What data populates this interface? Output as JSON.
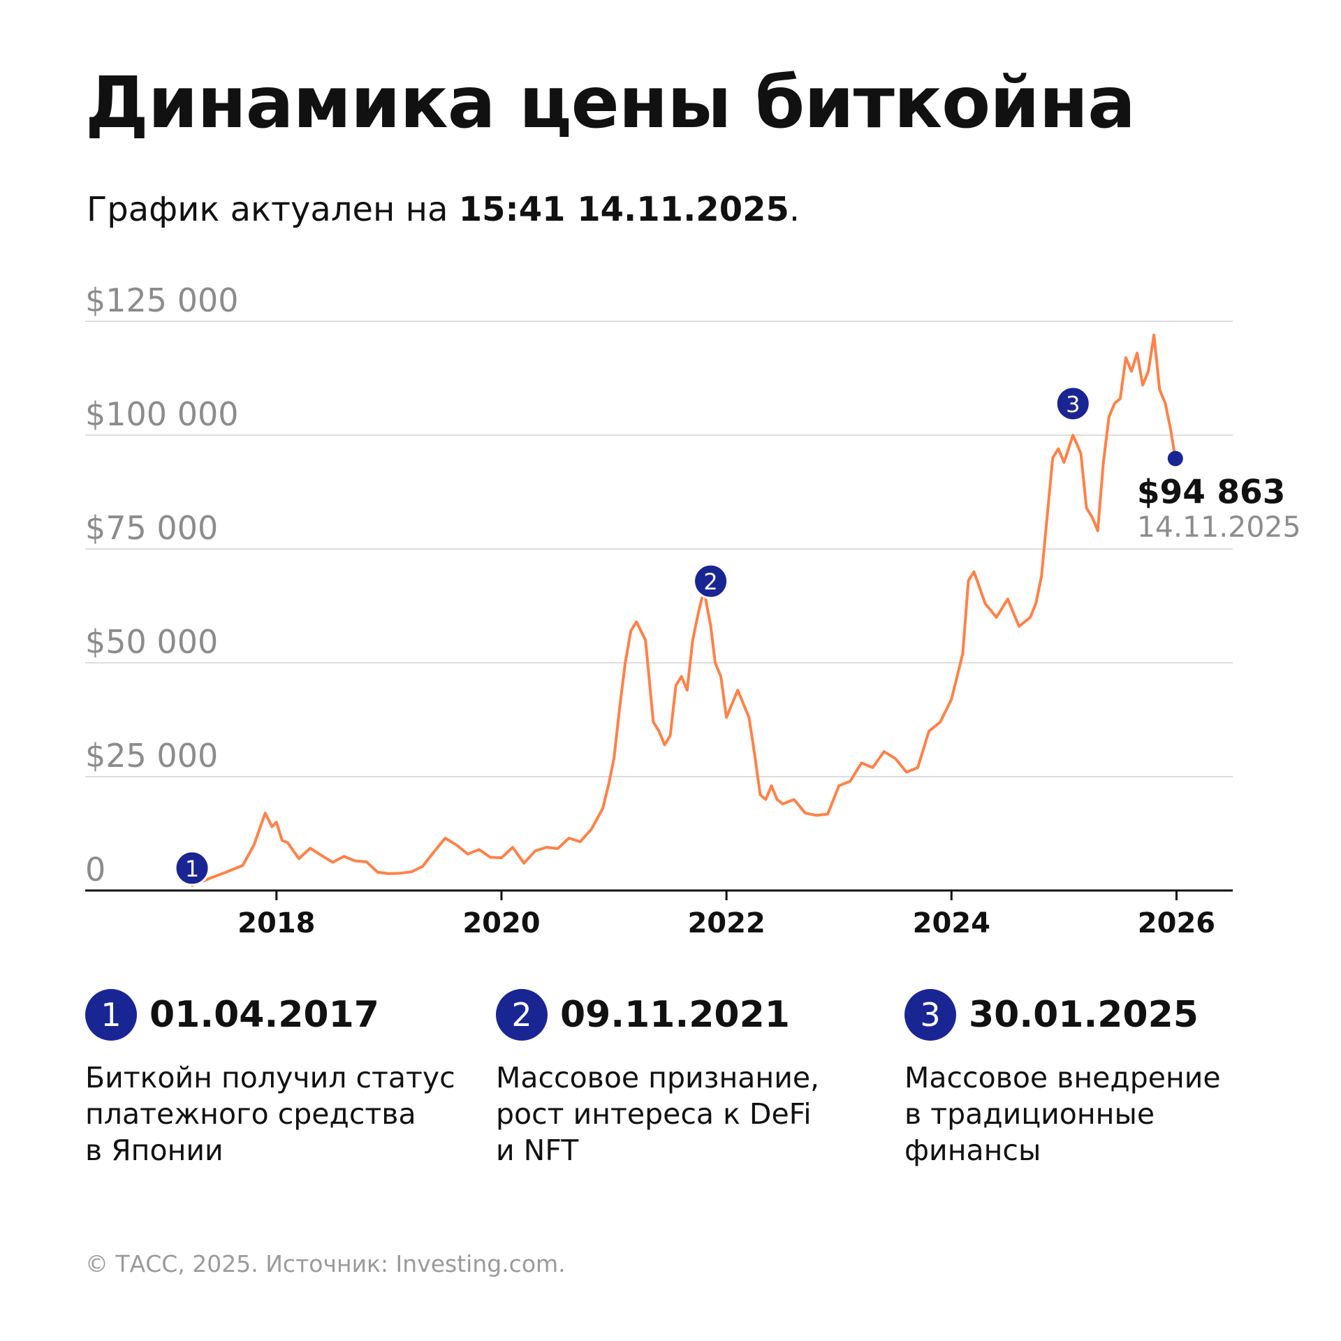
{
  "header": {
    "title": "Динамика цены биткойна",
    "subtitle_prefix": "График актуален на ",
    "subtitle_time": "15:41 14.11.2025",
    "subtitle_suffix": "."
  },
  "chart_data": {
    "type": "line",
    "title": "Динамика цены биткойна",
    "ylim": [
      0,
      125000
    ],
    "xlim": [
      2016.3,
      2026.5
    ],
    "yticks": [
      {
        "value": 125000,
        "label": "$125 000"
      },
      {
        "value": 100000,
        "label": "$100 000"
      },
      {
        "value": 75000,
        "label": "$75 000"
      },
      {
        "value": 50000,
        "label": "$50 000"
      },
      {
        "value": 25000,
        "label": "$25 000"
      },
      {
        "value": 0,
        "label": "0"
      }
    ],
    "xticks": [
      {
        "value": 2018,
        "label": "2018"
      },
      {
        "value": 2020,
        "label": "2020"
      },
      {
        "value": 2022,
        "label": "2022"
      },
      {
        "value": 2024,
        "label": "2024"
      },
      {
        "value": 2026,
        "label": "2026"
      }
    ],
    "grid": true,
    "line_color": "#ff8147",
    "marker_color": "#1a2594",
    "series": [
      {
        "x": [
          2017.25,
          2017.4,
          2017.55,
          2017.7,
          2017.8,
          2017.9,
          2017.96,
          2018.0,
          2018.05,
          2018.1,
          2018.2,
          2018.3,
          2018.4,
          2018.5,
          2018.6,
          2018.7,
          2018.8,
          2018.9,
          2019.0,
          2019.1,
          2019.2,
          2019.3,
          2019.4,
          2019.5,
          2019.6,
          2019.7,
          2019.8,
          2019.9,
          2020.0,
          2020.1,
          2020.2,
          2020.3,
          2020.4,
          2020.5,
          2020.6,
          2020.7,
          2020.8,
          2020.9,
          2020.95,
          2021.0,
          2021.05,
          2021.1,
          2021.15,
          2021.2,
          2021.28,
          2021.35,
          2021.4,
          2021.45,
          2021.5,
          2021.55,
          2021.6,
          2021.65,
          2021.7,
          2021.75,
          2021.8,
          2021.86,
          2021.9,
          2021.95,
          2022.0,
          2022.1,
          2022.2,
          2022.25,
          2022.3,
          2022.35,
          2022.4,
          2022.45,
          2022.5,
          2022.6,
          2022.7,
          2022.8,
          2022.9,
          2023.0,
          2023.1,
          2023.2,
          2023.3,
          2023.4,
          2023.5,
          2023.6,
          2023.7,
          2023.8,
          2023.9,
          2024.0,
          2024.1,
          2024.15,
          2024.2,
          2024.3,
          2024.4,
          2024.5,
          2024.6,
          2024.7,
          2024.75,
          2024.8,
          2024.85,
          2024.9,
          2024.95,
          2025.0,
          2025.08,
          2025.15,
          2025.2,
          2025.25,
          2025.3,
          2025.35,
          2025.4,
          2025.45,
          2025.5,
          2025.55,
          2025.6,
          2025.65,
          2025.7,
          2025.75,
          2025.8,
          2025.85,
          2025.9,
          2025.95,
          2025.99
        ],
        "y": [
          1100,
          2600,
          4000,
          5500,
          10000,
          17000,
          14000,
          15000,
          11000,
          10500,
          7000,
          9300,
          7700,
          6200,
          7500,
          6500,
          6300,
          4000,
          3700,
          3800,
          4100,
          5300,
          8500,
          11500,
          10000,
          8000,
          9000,
          7300,
          7200,
          9500,
          6000,
          8700,
          9500,
          9200,
          11500,
          10700,
          13500,
          18000,
          23000,
          29000,
          40000,
          50000,
          57000,
          59000,
          55000,
          37000,
          35000,
          32000,
          34000,
          45000,
          47000,
          44000,
          55000,
          61000,
          66000,
          58000,
          50000,
          47000,
          38000,
          44000,
          38000,
          30000,
          21000,
          20000,
          23000,
          20000,
          19000,
          20000,
          17000,
          16500,
          16800,
          23000,
          24000,
          28000,
          27000,
          30500,
          29000,
          26000,
          27000,
          35000,
          37000,
          42000,
          52000,
          68000,
          70000,
          63000,
          60000,
          64000,
          58000,
          60000,
          63000,
          69000,
          82000,
          95000,
          97000,
          94000,
          100000,
          96000,
          84000,
          82000,
          79000,
          94000,
          104000,
          107000,
          108000,
          117000,
          114000,
          118000,
          111000,
          114000,
          122000,
          110000,
          107000,
          101000,
          94863
        ]
      }
    ],
    "events": [
      {
        "num": "1",
        "x": 2017.25,
        "y": 4000
      },
      {
        "num": "2",
        "x": 2021.86,
        "y": 67000
      },
      {
        "num": "3",
        "x": 2025.08,
        "y": 106000
      }
    ],
    "last_point": {
      "x": 2025.99,
      "y": 94863,
      "value_label": "$94 863",
      "date_label": "14.11.2025"
    }
  },
  "events": [
    {
      "num": "1",
      "date": "01.04.2017",
      "desc": [
        "Биткойн получил статус",
        "платежного средства",
        "в Японии"
      ]
    },
    {
      "num": "2",
      "date": "09.11.2021",
      "desc": [
        "Массовое признание,",
        "рост интереса к DeFi",
        "и NFT"
      ]
    },
    {
      "num": "3",
      "date": "30.01.2025",
      "desc": [
        "Массовое внедрение",
        "в традиционные",
        "финансы"
      ]
    }
  ],
  "footer": {
    "source": "© ТАСС, 2025. Источник: Investing.com."
  }
}
